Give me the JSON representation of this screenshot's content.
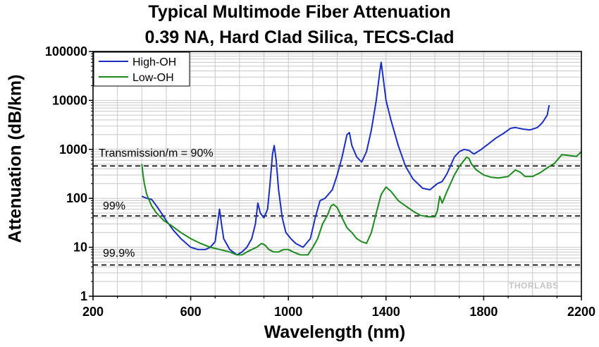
{
  "chart_data": {
    "type": "line",
    "title": "Typical Multimode Fiber Attenuation",
    "subtitle": "0.39 NA, Hard Clad Silica, TECS-Clad",
    "xlabel": "Wavelength (nm)",
    "ylabel": "Attenuation (dB/km)",
    "xlim": [
      200,
      2200
    ],
    "ylim": [
      1,
      100000
    ],
    "yscale": "log",
    "x_ticks": [
      200,
      600,
      1000,
      1400,
      1800,
      2200
    ],
    "y_ticks": [
      1,
      10,
      100,
      1000,
      10000,
      100000
    ],
    "y_tick_labels": [
      "1",
      "10",
      "100",
      "1000",
      "10000",
      "100000"
    ],
    "grid": true,
    "legend_position": "top-left",
    "watermark": "THORLABS",
    "colors": {
      "high_oh": "#1a2fc0",
      "low_oh": "#1c8a1c"
    },
    "series": [
      {
        "name": "High-OH",
        "color": "#1a2fc0",
        "x": [
          400,
          420,
          440,
          460,
          480,
          500,
          530,
          560,
          600,
          630,
          660,
          680,
          700,
          710,
          718,
          726,
          735,
          760,
          790,
          810,
          830,
          850,
          865,
          875,
          885,
          900,
          915,
          925,
          935,
          942,
          950,
          960,
          975,
          990,
          1010,
          1030,
          1060,
          1090,
          1110,
          1130,
          1150,
          1180,
          1200,
          1220,
          1240,
          1250,
          1260,
          1280,
          1300,
          1320,
          1340,
          1360,
          1375,
          1380,
          1388,
          1400,
          1420,
          1450,
          1480,
          1510,
          1550,
          1580,
          1610,
          1630,
          1650,
          1680,
          1700,
          1720,
          1740,
          1760,
          1790,
          1820,
          1850,
          1880,
          1910,
          1930,
          1960,
          1990,
          2020,
          2040,
          2060,
          2068
        ],
        "y": [
          110,
          100,
          95,
          70,
          50,
          35,
          22,
          15,
          10,
          9,
          9,
          10,
          13,
          30,
          60,
          30,
          15,
          9,
          7,
          8,
          10,
          15,
          30,
          80,
          50,
          40,
          60,
          200,
          800,
          1200,
          600,
          150,
          40,
          20,
          15,
          12,
          10,
          15,
          40,
          90,
          100,
          150,
          300,
          700,
          2000,
          2200,
          1200,
          700,
          550,
          900,
          2500,
          10000,
          40000,
          60000,
          30000,
          10000,
          4000,
          1200,
          450,
          250,
          160,
          150,
          200,
          220,
          320,
          700,
          900,
          1000,
          950,
          800,
          1000,
          1300,
          1700,
          2100,
          2700,
          2800,
          2600,
          2500,
          2800,
          3500,
          5000,
          8000
        ]
      },
      {
        "name": "Low-OH",
        "color": "#1c8a1c",
        "x": [
          400,
          405,
          410,
          420,
          440,
          460,
          490,
          520,
          560,
          600,
          640,
          680,
          720,
          760,
          790,
          810,
          830,
          850,
          870,
          890,
          905,
          920,
          940,
          960,
          980,
          1000,
          1020,
          1050,
          1080,
          1100,
          1120,
          1140,
          1160,
          1175,
          1185,
          1200,
          1220,
          1240,
          1260,
          1280,
          1300,
          1320,
          1340,
          1360,
          1380,
          1400,
          1420,
          1450,
          1480,
          1510,
          1540,
          1570,
          1600,
          1610,
          1620,
          1630,
          1650,
          1680,
          1700,
          1720,
          1730,
          1740,
          1750,
          1770,
          1800,
          1830,
          1860,
          1900,
          1930,
          1950,
          1970,
          2000,
          2030,
          2060,
          2090,
          2120,
          2150,
          2180,
          2200
        ],
        "y": [
          500,
          300,
          200,
          120,
          70,
          50,
          35,
          28,
          20,
          15,
          12,
          10,
          9,
          8,
          7,
          7,
          8,
          9,
          10,
          12,
          11,
          9,
          8,
          8,
          9,
          9,
          8,
          7,
          7,
          10,
          15,
          30,
          45,
          70,
          75,
          65,
          40,
          25,
          20,
          15,
          13,
          12,
          20,
          50,
          120,
          170,
          140,
          90,
          70,
          55,
          45,
          42,
          42,
          55,
          110,
          80,
          140,
          300,
          450,
          600,
          700,
          650,
          500,
          380,
          300,
          270,
          260,
          280,
          380,
          340,
          280,
          280,
          330,
          420,
          520,
          780,
          750,
          720,
          900
        ]
      }
    ],
    "reference_lines": [
      {
        "label": "Transmission/m = 90%",
        "value": 457.6
      },
      {
        "label": "99%",
        "value": 43.65
      },
      {
        "label": "99.9%",
        "value": 4.345
      }
    ]
  }
}
